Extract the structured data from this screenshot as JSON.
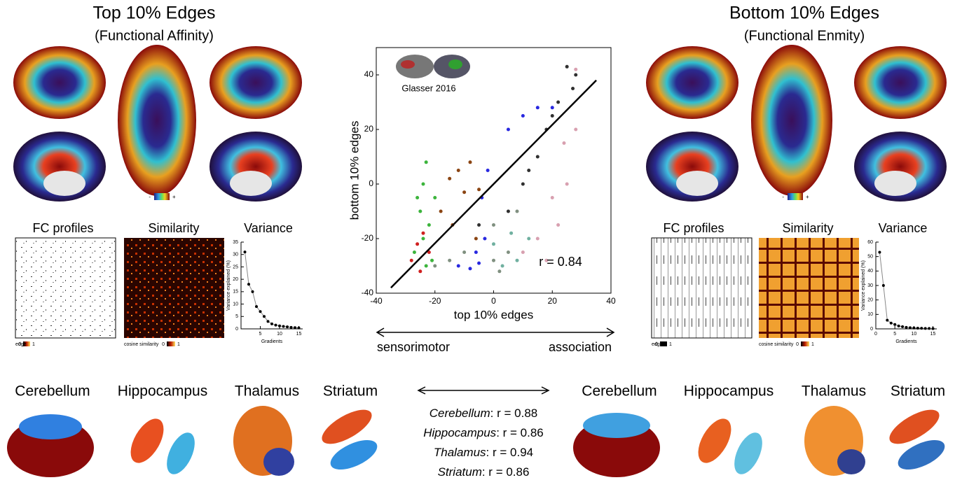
{
  "panels": [
    {
      "title": "Top 10% Edges",
      "subtitle": "(Functional Affinity)",
      "colorbar": [
        "-",
        "+"
      ],
      "matrices": [
        {
          "title": "FC profiles",
          "legend": "edge",
          "legend_ticks": [
            0,
            1
          ]
        },
        {
          "title": "Similarity",
          "legend": "cosine similarity",
          "legend_ticks": [
            0,
            1
          ]
        }
      ],
      "regions": [
        "Cerebellum",
        "Hippocampus",
        "Thalamus",
        "Striatum"
      ]
    },
    {
      "title": "Bottom 10% Edges",
      "subtitle": "(Functional Enmity)",
      "colorbar": [
        "-",
        "+"
      ],
      "matrices": [
        {
          "title": "FC profiles",
          "legend": "edge",
          "legend_ticks": [
            0,
            1
          ]
        },
        {
          "title": "Similarity",
          "legend": "cosine similarity",
          "legend_ticks": [
            0,
            1
          ]
        }
      ],
      "regions": [
        "Cerebellum",
        "Hippocampus",
        "Thalamus",
        "Striatum"
      ]
    }
  ],
  "center": {
    "inset_label": "Glasser 2016",
    "axis_ends": [
      "sensorimotor",
      "association"
    ],
    "correlations": [
      {
        "region": "Cerebellum",
        "text": ": r = 0.88"
      },
      {
        "region": "Hippocampus",
        "text": ": r = 0.86"
      },
      {
        "region": "Thalamus",
        "text": ": r = 0.94"
      },
      {
        "region": "Striatum",
        "text": ": r = 0.86"
      }
    ]
  },
  "chart_data": [
    {
      "type": "scatter",
      "xlabel": "top 10% edges",
      "ylabel": "bottom 10% edges",
      "annotation": "r = 0.84",
      "xlim": [
        -40,
        40
      ],
      "ylim": [
        -40,
        50
      ],
      "xticks": [
        -40,
        -20,
        0,
        20,
        40
      ],
      "yticks": [
        -40,
        -20,
        0,
        20,
        40
      ],
      "fit": {
        "x": [
          -35,
          35
        ],
        "y": [
          -38,
          38
        ],
        "color": "#000000"
      },
      "series": [
        {
          "color": "#3cb43c",
          "x": [
            -27,
            -25,
            -24,
            -23,
            -22,
            -26,
            -24,
            -21,
            -20,
            -23
          ],
          "y": [
            -25,
            -10,
            0,
            8,
            -15,
            -5,
            -20,
            -28,
            -5,
            -30
          ]
        },
        {
          "color": "#d02020",
          "x": [
            -28,
            -26,
            -25,
            -24,
            -22
          ],
          "y": [
            -28,
            -22,
            -32,
            -18,
            -25
          ]
        },
        {
          "color": "#8b4513",
          "x": [
            -15,
            -12,
            -10,
            -8,
            -5,
            -18,
            -14,
            -6
          ],
          "y": [
            2,
            5,
            -3,
            8,
            -2,
            -10,
            -15,
            -20
          ]
        },
        {
          "color": "#2828e0",
          "x": [
            -12,
            -8,
            -5,
            -3,
            -4,
            -2,
            5,
            10,
            15,
            20,
            -6
          ],
          "y": [
            -30,
            -31,
            -29,
            -20,
            -5,
            5,
            20,
            25,
            28,
            28,
            -25
          ]
        },
        {
          "color": "#303030",
          "x": [
            25,
            28,
            22,
            18,
            15,
            10,
            5,
            -5,
            20,
            27,
            12
          ],
          "y": [
            43,
            40,
            30,
            20,
            10,
            0,
            -10,
            -15,
            25,
            35,
            5
          ]
        },
        {
          "color": "#d8a0b0",
          "x": [
            28,
            24,
            20,
            15,
            10,
            25,
            22,
            18,
            28
          ],
          "y": [
            42,
            15,
            -5,
            -20,
            -25,
            0,
            -15,
            -28,
            20
          ]
        },
        {
          "color": "#809080",
          "x": [
            -15,
            -10,
            0,
            5,
            -20,
            0,
            8,
            2
          ],
          "y": [
            -28,
            -25,
            -28,
            -25,
            -30,
            -15,
            -10,
            -32
          ]
        },
        {
          "color": "#70b0a0",
          "x": [
            3,
            8,
            12,
            0,
            6
          ],
          "y": [
            -30,
            -28,
            -20,
            -22,
            -18
          ]
        }
      ]
    },
    {
      "type": "line",
      "title": "Variance",
      "xlabel": "Gradients",
      "ylabel": "Variance explained (%)",
      "color": "#000000",
      "x": [
        1,
        2,
        3,
        4,
        5,
        6,
        7,
        8,
        9,
        10,
        11,
        12,
        13,
        14,
        15
      ],
      "values": [
        31,
        18,
        15,
        9,
        7,
        5,
        3,
        2,
        1.5,
        1.2,
        1,
        0.8,
        0.6,
        0.5,
        0.4
      ],
      "xlim": [
        0,
        16
      ],
      "ylim": [
        0,
        35
      ],
      "xticks": [
        5,
        10,
        15
      ],
      "yticks": [
        0,
        5,
        10,
        15,
        20,
        25,
        30,
        35
      ]
    },
    {
      "type": "line",
      "title": "Variance",
      "xlabel": "Gradients",
      "ylabel": "Variance explained (%)",
      "color": "#000000",
      "x": [
        1,
        2,
        3,
        4,
        5,
        6,
        7,
        8,
        9,
        10,
        11,
        12,
        13,
        14,
        15
      ],
      "values": [
        53,
        30,
        6,
        4,
        3,
        2,
        1.5,
        1,
        0.8,
        0.6,
        0.5,
        0.4,
        0.3,
        0.3,
        0.2
      ],
      "xlim": [
        0,
        16
      ],
      "ylim": [
        0,
        60
      ],
      "xticks": [
        0,
        5,
        10,
        15
      ],
      "yticks": [
        0,
        10,
        20,
        30,
        40,
        50,
        60
      ]
    }
  ]
}
